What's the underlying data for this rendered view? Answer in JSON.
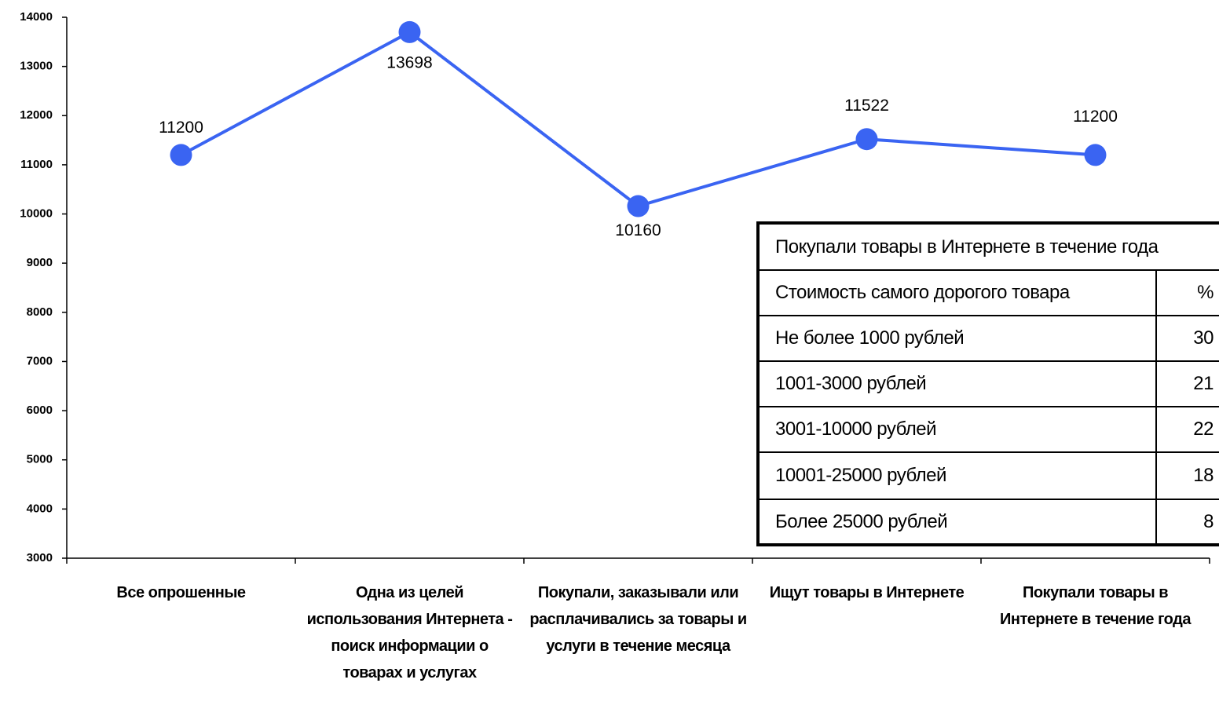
{
  "chart_data": {
    "type": "line",
    "categories": [
      "Все опрошенные",
      "Одна из целей использования Интернета - поиск информации о товарах и услугах",
      "Покупали, заказывали или расплачивались за товары и услуги в течение месяца",
      "Ищут товары в Интернете",
      "Покупали товары в Интернете  в течение года"
    ],
    "values": [
      11200,
      13698,
      10160,
      11522,
      11200
    ],
    "color": "#3a64f2",
    "ylim": [
      3000,
      14000
    ],
    "yticks": [
      3000,
      4000,
      5000,
      6000,
      7000,
      8000,
      9000,
      10000,
      11000,
      12000,
      13000,
      14000
    ],
    "grid": false
  },
  "table": {
    "title": "Покупали товары в Интернете в течение года",
    "header": [
      "Стоимость самого дорогого товара",
      "%"
    ],
    "rows": [
      [
        "Не более 1000 рублей",
        30
      ],
      [
        "1001-3000 рублей",
        21
      ],
      [
        "3001-10000 рублей",
        22
      ],
      [
        "10001-25000 рублей",
        18
      ],
      [
        "Более 25000 рублей",
        8
      ]
    ]
  }
}
